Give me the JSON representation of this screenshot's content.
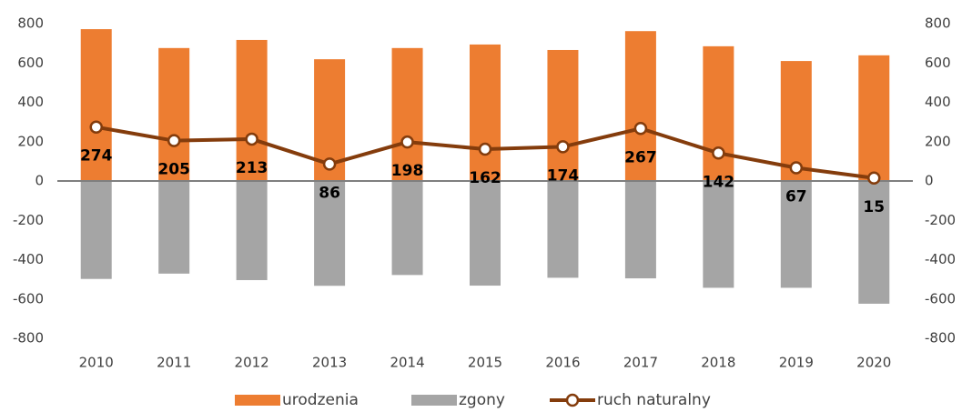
{
  "chart_data": {
    "type": "bar_line",
    "categories": [
      "2010",
      "2011",
      "2012",
      "2013",
      "2014",
      "2015",
      "2016",
      "2017",
      "2018",
      "2019",
      "2020"
    ],
    "series": [
      {
        "name": "urodzenia",
        "color": "#ed7d31",
        "type": "bar",
        "values": [
          772,
          676,
          717,
          619,
          676,
          694,
          666,
          762,
          685,
          610,
          639
        ]
      },
      {
        "name": "zgony",
        "color": "#a5a5a5",
        "type": "bar",
        "values": [
          -498,
          -471,
          -504,
          -533,
          -478,
          -532,
          -492,
          -495,
          -543,
          -543,
          -624
        ]
      },
      {
        "name": "ruch naturalny",
        "color": "#843c0c",
        "type": "line",
        "values": [
          274,
          205,
          213,
          86,
          198,
          162,
          174,
          267,
          142,
          67,
          15
        ]
      }
    ],
    "ylim": [
      -800,
      800
    ],
    "yticks": [
      -800,
      -600,
      -400,
      -200,
      0,
      200,
      400,
      600,
      800
    ],
    "y2lim": [
      -800,
      800
    ],
    "y2ticks": [
      -800,
      -600,
      -400,
      -200,
      0,
      200,
      400,
      600,
      800
    ],
    "grid": false,
    "legend": "bottom"
  }
}
